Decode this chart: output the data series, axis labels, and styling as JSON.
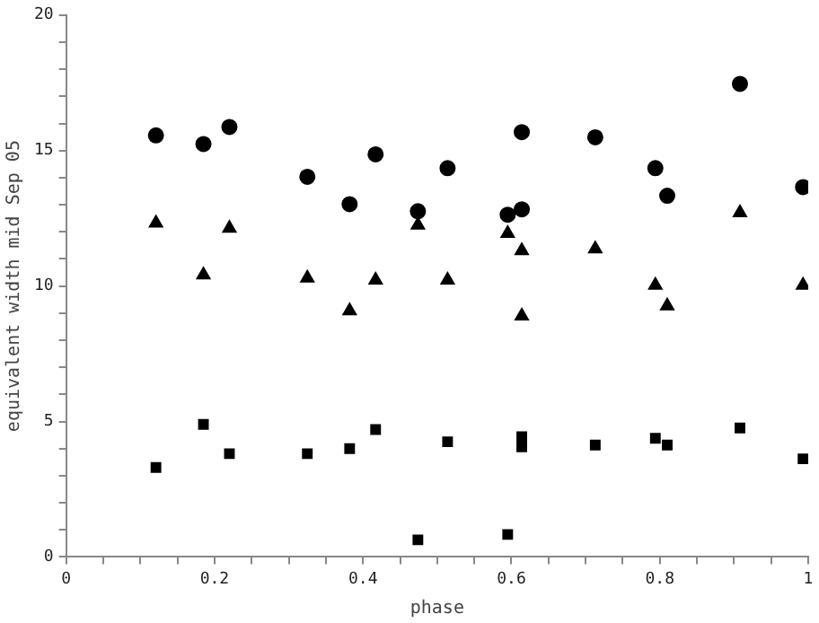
{
  "chart_data": {
    "type": "scatter",
    "xlabel": "phase",
    "ylabel": "equivalent width mid Sep 05",
    "xlim": [
      0,
      1
    ],
    "ylim": [
      0,
      20
    ],
    "xticks": [
      0,
      {
        "value": 0.05,
        "label": null
      },
      {
        "value": 0.1,
        "label": null
      },
      {
        "value": 0.15,
        "label": null
      },
      0.2,
      {
        "value": 0.25,
        "label": null
      },
      {
        "value": 0.3,
        "label": null
      },
      {
        "value": 0.35,
        "label": null
      },
      0.4,
      {
        "value": 0.45,
        "label": null
      },
      {
        "value": 0.5,
        "label": null
      },
      {
        "value": 0.55,
        "label": null
      },
      0.6,
      {
        "value": 0.65,
        "label": null
      },
      {
        "value": 0.7,
        "label": null
      },
      {
        "value": 0.75,
        "label": null
      },
      0.8,
      {
        "value": 0.85,
        "label": null
      },
      {
        "value": 0.9,
        "label": null
      },
      {
        "value": 0.95,
        "label": null
      },
      1
    ],
    "yticks": [
      0,
      {
        "value": 1,
        "label": null
      },
      {
        "value": 2,
        "label": null
      },
      {
        "value": 3,
        "label": null
      },
      {
        "value": 4,
        "label": null
      },
      5,
      {
        "value": 6,
        "label": null
      },
      {
        "value": 7,
        "label": null
      },
      {
        "value": 8,
        "label": null
      },
      {
        "value": 9,
        "label": null
      },
      10,
      {
        "value": 11,
        "label": null
      },
      {
        "value": 12,
        "label": null
      },
      {
        "value": 13,
        "label": null
      },
      {
        "value": 14,
        "label": null
      },
      15,
      {
        "value": 16,
        "label": null
      },
      {
        "value": 17,
        "label": null
      },
      {
        "value": 18,
        "label": null
      },
      {
        "value": 19,
        "label": null
      },
      20
    ],
    "grid": false,
    "legend": false,
    "x": [
      0.121,
      0.185,
      0.22,
      0.325,
      0.382,
      0.417,
      0.474,
      0.514,
      0.595,
      0.614,
      0.614,
      0.713,
      0.794,
      0.81,
      0.908,
      0.993
    ],
    "series": [
      {
        "color": "#000000",
        "marker": "circle",
        "values": [
          15.56,
          15.24,
          15.87,
          14.03,
          13.02,
          14.86,
          12.76,
          14.35,
          12.63,
          12.83,
          15.68,
          15.49,
          14.35,
          13.33,
          17.46,
          13.65
        ]
      },
      {
        "color": "#000000",
        "marker": "triangle",
        "values": [
          12.32,
          10.41,
          12.13,
          10.29,
          9.08,
          10.22,
          12.25,
          10.22,
          11.94,
          11.3,
          8.89,
          11.37,
          10.03,
          9.27,
          12.7,
          10.03
        ]
      },
      {
        "color": "#000000",
        "marker": "square",
        "values": [
          3.3,
          4.89,
          3.81,
          3.81,
          4.0,
          4.7,
          0.63,
          4.25,
          0.83,
          4.44,
          4.06,
          4.13,
          4.38,
          4.13,
          4.76,
          3.62
        ]
      }
    ]
  }
}
